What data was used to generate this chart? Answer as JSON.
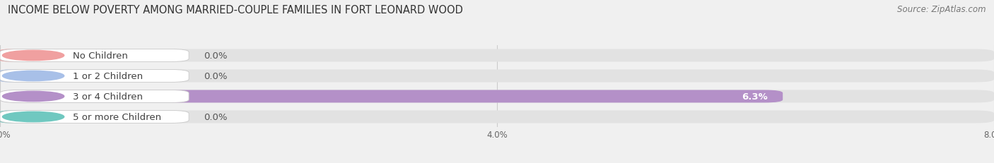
{
  "title": "INCOME BELOW POVERTY AMONG MARRIED-COUPLE FAMILIES IN FORT LEONARD WOOD",
  "source": "Source: ZipAtlas.com",
  "categories": [
    "No Children",
    "1 or 2 Children",
    "3 or 4 Children",
    "5 or more Children"
  ],
  "values": [
    0.0,
    0.0,
    6.3,
    0.0
  ],
  "bar_colors": [
    "#f0a0a0",
    "#a8c0e8",
    "#b490c8",
    "#70c8c0"
  ],
  "background_color": "#f0f0f0",
  "bar_bg_color": "#e2e2e2",
  "xlim": [
    0.0,
    8.0
  ],
  "xticks": [
    0.0,
    4.0,
    8.0
  ],
  "xtick_labels": [
    "0.0%",
    "4.0%",
    "8.0%"
  ],
  "title_fontsize": 10.5,
  "label_fontsize": 9.5,
  "value_fontsize": 9.5,
  "source_fontsize": 8.5
}
